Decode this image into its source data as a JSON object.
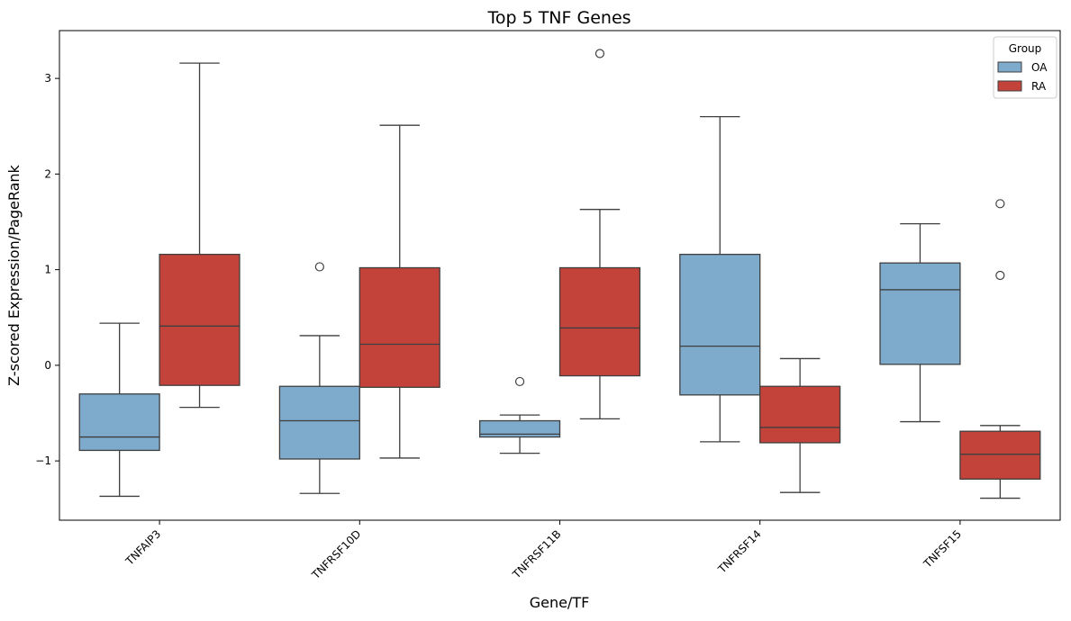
{
  "chart_data": {
    "type": "box",
    "title": "Top 5 TNF Genes",
    "xlabel": "Gene/TF",
    "ylabel": "Z-scored Expression/PageRank",
    "categories": [
      "TNFAIP3",
      "TNFRSF10D",
      "TNFRSF11B",
      "TNFRSF14",
      "TNFSF15"
    ],
    "ylim": [
      -1.62,
      3.5
    ],
    "yticks": [
      -1,
      0,
      1,
      2,
      3
    ],
    "grid": false,
    "legend": {
      "title": "Group",
      "position": "top-right"
    },
    "series": [
      {
        "name": "OA",
        "color": "#7eaacb",
        "boxes": [
          {
            "whisker_low": -1.37,
            "q1": -0.89,
            "median": -0.75,
            "q3": -0.3,
            "whisker_high": 0.44,
            "outliers": []
          },
          {
            "whisker_low": -1.34,
            "q1": -0.98,
            "median": -0.58,
            "q3": -0.22,
            "whisker_high": 0.31,
            "outliers": [
              1.03
            ]
          },
          {
            "whisker_low": -0.92,
            "q1": -0.75,
            "median": -0.72,
            "q3": -0.58,
            "whisker_high": -0.52,
            "outliers": [
              -0.17
            ]
          },
          {
            "whisker_low": -0.8,
            "q1": -0.31,
            "median": 0.2,
            "q3": 1.16,
            "whisker_high": 2.6,
            "outliers": []
          },
          {
            "whisker_low": -0.59,
            "q1": 0.01,
            "median": 0.79,
            "q3": 1.07,
            "whisker_high": 1.48,
            "outliers": []
          }
        ]
      },
      {
        "name": "RA",
        "color": "#c3433b",
        "boxes": [
          {
            "whisker_low": -0.44,
            "q1": -0.21,
            "median": 0.41,
            "q3": 1.16,
            "whisker_high": 3.16,
            "outliers": []
          },
          {
            "whisker_low": -0.97,
            "q1": -0.23,
            "median": 0.22,
            "q3": 1.02,
            "whisker_high": 2.51,
            "outliers": []
          },
          {
            "whisker_low": -0.56,
            "q1": -0.11,
            "median": 0.39,
            "q3": 1.02,
            "whisker_high": 1.63,
            "outliers": [
              3.26
            ]
          },
          {
            "whisker_low": -1.33,
            "q1": -0.81,
            "median": -0.65,
            "q3": -0.22,
            "whisker_high": 0.07,
            "outliers": []
          },
          {
            "whisker_low": -1.39,
            "q1": -1.19,
            "median": -0.93,
            "q3": -0.69,
            "whisker_high": -0.63,
            "outliers": [
              0.94,
              1.69
            ]
          }
        ]
      }
    ]
  }
}
